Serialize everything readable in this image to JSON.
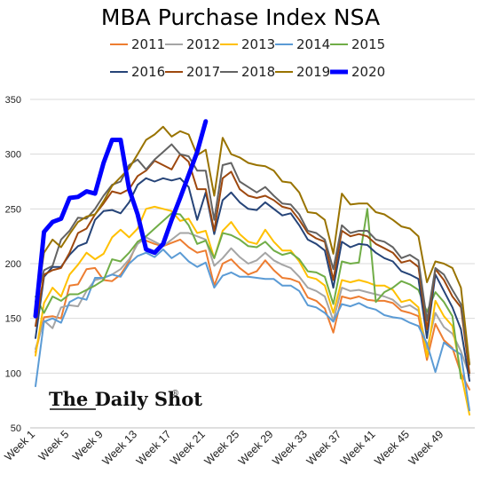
{
  "chart_data": {
    "type": "line",
    "title": "MBA Purchase Index NSA",
    "xlabel": "",
    "ylabel": "",
    "ylim": [
      50,
      350
    ],
    "yticks": [
      50,
      100,
      150,
      200,
      250,
      300,
      350
    ],
    "xtick_labels": [
      "Week 1",
      "Week 5",
      "Week 9",
      "Week 13",
      "Week 17",
      "Week 21",
      "Week 25",
      "Week 29",
      "Week 33",
      "Week 37",
      "Week 41",
      "Week 45",
      "Week 49"
    ],
    "grid": "horizontal",
    "legend_position": "top",
    "x": [
      1,
      2,
      3,
      4,
      5,
      6,
      7,
      8,
      9,
      10,
      11,
      12,
      13,
      14,
      15,
      16,
      17,
      18,
      19,
      20,
      21,
      22,
      23,
      24,
      25,
      26,
      27,
      28,
      29,
      30,
      31,
      32,
      33,
      34,
      35,
      36,
      37,
      38,
      39,
      40,
      41,
      42,
      43,
      44,
      45,
      46,
      47,
      48,
      49,
      50,
      51,
      52
    ],
    "series": [
      {
        "name": "2011",
        "color": "#ed7d31",
        "values": [
          119,
          151,
          152,
          150,
          180,
          181,
          195,
          196,
          185,
          184,
          190,
          202,
          220,
          221,
          218,
          216,
          219,
          222,
          215,
          210,
          212,
          180,
          200,
          204,
          196,
          190,
          193,
          203,
          194,
          187,
          186,
          183,
          169,
          166,
          159,
          137,
          170,
          168,
          170,
          167,
          166,
          166,
          164,
          157,
          155,
          152,
          112,
          145,
          130,
          123,
          100,
          85
        ]
      },
      {
        "name": "2012",
        "color": "#a5a5a5",
        "values": [
          122,
          148,
          141,
          160,
          162,
          161,
          175,
          185,
          187,
          190,
          195,
          204,
          218,
          224,
          220,
          216,
          222,
          228,
          228,
          225,
          222,
          198,
          205,
          214,
          206,
          200,
          203,
          210,
          203,
          199,
          196,
          188,
          178,
          175,
          170,
          148,
          178,
          175,
          176,
          174,
          172,
          170,
          167,
          160,
          162,
          157,
          122,
          155,
          142,
          136,
          120,
          98
        ]
      },
      {
        "name": "2013",
        "color": "#ffc000",
        "values": [
          116,
          164,
          178,
          170,
          190,
          199,
          210,
          204,
          209,
          224,
          231,
          224,
          232,
          250,
          252,
          250,
          248,
          239,
          241,
          228,
          230,
          205,
          230,
          238,
          227,
          220,
          218,
          231,
          220,
          212,
          212,
          202,
          188,
          186,
          180,
          155,
          185,
          183,
          185,
          183,
          180,
          180,
          176,
          165,
          167,
          160,
          115,
          166,
          152,
          143,
          100,
          62
        ]
      },
      {
        "name": "2014",
        "color": "#5b9bd5",
        "values": [
          88,
          147,
          150,
          146,
          165,
          169,
          167,
          187,
          187,
          190,
          188,
          200,
          207,
          210,
          206,
          213,
          205,
          210,
          202,
          197,
          201,
          178,
          189,
          192,
          188,
          188,
          187,
          186,
          186,
          180,
          180,
          175,
          162,
          160,
          155,
          147,
          163,
          161,
          164,
          160,
          158,
          153,
          151,
          150,
          146,
          143,
          127,
          101,
          128,
          122,
          117,
          66
        ]
      },
      {
        "name": "2015",
        "color": "#70ad47",
        "values": [
          170,
          155,
          170,
          166,
          172,
          172,
          176,
          180,
          185,
          204,
          202,
          210,
          220,
          225,
          232,
          239,
          246,
          245,
          235,
          218,
          221,
          205,
          228,
          226,
          222,
          216,
          215,
          220,
          212,
          208,
          210,
          204,
          193,
          192,
          188,
          163,
          202,
          200,
          201,
          250,
          165,
          174,
          178,
          184,
          181,
          176,
          156,
          174,
          165,
          152,
          95,
          null
        ]
      },
      {
        "name": "2016",
        "color": "#264478",
        "values": [
          132,
          188,
          197,
          197,
          208,
          216,
          219,
          240,
          248,
          249,
          246,
          256,
          272,
          278,
          275,
          278,
          276,
          278,
          270,
          240,
          265,
          227,
          258,
          265,
          256,
          250,
          249,
          256,
          250,
          244,
          246,
          235,
          222,
          218,
          212,
          178,
          220,
          215,
          218,
          217,
          210,
          205,
          202,
          193,
          190,
          186,
          132,
          190,
          175,
          160,
          140,
          93
        ]
      },
      {
        "name": "2017",
        "color": "#9e480e",
        "values": [
          143,
          190,
          194,
          196,
          210,
          228,
          232,
          245,
          255,
          266,
          264,
          268,
          280,
          285,
          294,
          290,
          286,
          300,
          293,
          268,
          268,
          230,
          278,
          284,
          268,
          262,
          260,
          262,
          258,
          252,
          250,
          240,
          228,
          223,
          220,
          185,
          230,
          225,
          227,
          225,
          218,
          214,
          210,
          201,
          203,
          197,
          140,
          195,
          185,
          170,
          160,
          100
        ]
      },
      {
        "name": "2018",
        "color": "#636363",
        "values": [
          165,
          194,
          198,
          222,
          230,
          242,
          241,
          250,
          262,
          272,
          275,
          290,
          295,
          286,
          295,
          302,
          309,
          300,
          298,
          285,
          285,
          240,
          290,
          292,
          275,
          270,
          265,
          270,
          262,
          255,
          254,
          245,
          230,
          228,
          222,
          195,
          235,
          228,
          230,
          230,
          222,
          220,
          215,
          205,
          208,
          203,
          148,
          196,
          190,
          176,
          163,
          108
        ]
      },
      {
        "name": "2019",
        "color": "#997300",
        "values": [
          158,
          210,
          222,
          215,
          227,
          238,
          243,
          245,
          257,
          271,
          279,
          287,
          300,
          313,
          318,
          325,
          316,
          321,
          318,
          299,
          304,
          262,
          315,
          300,
          297,
          292,
          290,
          289,
          285,
          275,
          274,
          265,
          247,
          246,
          240,
          209,
          264,
          254,
          255,
          255,
          247,
          245,
          240,
          234,
          232,
          225,
          183,
          202,
          200,
          196,
          178,
          108
        ]
      },
      {
        "name": "2020",
        "color": "#0000ff",
        "values": [
          152,
          229,
          238,
          241,
          260,
          261,
          266,
          264,
          292,
          313,
          313,
          268,
          245,
          213,
          210,
          218,
          240,
          260,
          281,
          302,
          330,
          null,
          null,
          null,
          null,
          null,
          null,
          null,
          null,
          null,
          null,
          null,
          null,
          null,
          null,
          null,
          null,
          null,
          null,
          null,
          null,
          null,
          null,
          null,
          null,
          null,
          null,
          null,
          null,
          null,
          null,
          null
        ]
      }
    ]
  },
  "watermark": {
    "text": "The Daily Shot",
    "mark": "®"
  }
}
